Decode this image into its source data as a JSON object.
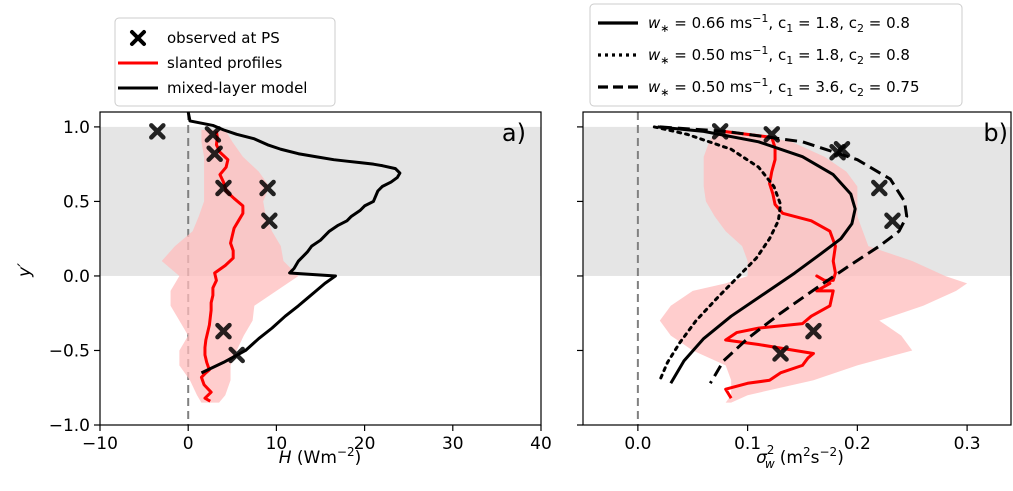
{
  "chart_data": [
    {
      "type": "line",
      "panel_label": "a)",
      "xlabel_var": "H",
      "xlabel_unit": " (Wm",
      "xlabel_exp": "−2",
      "xlabel_close": ")",
      "ylabel": "y′",
      "xlim": [
        -10,
        40
      ],
      "ylim": [
        -1.0,
        1.1
      ],
      "xticks": [
        -10,
        0,
        10,
        20,
        30,
        40
      ],
      "xtick_labels": [
        "−10",
        "0",
        "10",
        "20",
        "30",
        "40"
      ],
      "yticks": [
        -1.0,
        -0.5,
        0.0,
        0.5,
        1.0
      ],
      "ytick_labels": [
        "−1.0",
        "−0.5",
        "0.0",
        "0.5",
        "1.0"
      ],
      "shaded_band": [
        0.0,
        1.0
      ],
      "zero_line": 0,
      "legend": {
        "position": "above-left",
        "entries": [
          {
            "label": "observed at PS",
            "marker": "x-marker"
          },
          {
            "label": "slanted profiles",
            "color": "#ff0000"
          },
          {
            "label": "mixed-layer model",
            "color": "#000000"
          }
        ]
      },
      "series": [
        {
          "name": "observed at PS",
          "kind": "marker",
          "x": [
            -3.5,
            2.8,
            3.0,
            4.0,
            9.0,
            9.2,
            4.0,
            5.5
          ],
          "y": [
            0.97,
            0.95,
            0.82,
            0.59,
            0.59,
            0.37,
            -0.37,
            -0.53
          ]
        },
        {
          "name": "slanted profiles",
          "kind": "line",
          "color": "#ff0000",
          "x": [
            3.2,
            3.3,
            3.2,
            3.6,
            4.5,
            4.3,
            3.6,
            4.0,
            4.3,
            5.2,
            6.2,
            6.2,
            5.7,
            5.2,
            5.0,
            4.8,
            5.1,
            5.1,
            4.2,
            3.0,
            3.2,
            2.8,
            2.8,
            2.6,
            2.6,
            2.5,
            2.4,
            2.2,
            2.0,
            1.9,
            1.9,
            2.1,
            2.4,
            2.0,
            1.5,
            1.8,
            2.6,
            1.9,
            2.5
          ],
          "y": [
            0.97,
            0.93,
            0.88,
            0.83,
            0.78,
            0.73,
            0.68,
            0.63,
            0.57,
            0.52,
            0.47,
            0.42,
            0.37,
            0.32,
            0.27,
            0.22,
            0.17,
            0.12,
            0.07,
            0.02,
            -0.03,
            -0.08,
            -0.13,
            -0.18,
            -0.23,
            -0.28,
            -0.33,
            -0.38,
            -0.43,
            -0.48,
            -0.53,
            -0.58,
            -0.63,
            -0.65,
            -0.68,
            -0.73,
            -0.78,
            -0.82,
            -0.84
          ]
        },
        {
          "name": "slanted profiles band",
          "kind": "band",
          "color": "#ffbcbc",
          "y": [
            0.98,
            0.9,
            0.8,
            0.7,
            0.6,
            0.5,
            0.4,
            0.3,
            0.2,
            0.1,
            0.0,
            -0.1,
            -0.2,
            -0.3,
            -0.4,
            -0.5,
            -0.6,
            -0.7,
            -0.8,
            -0.85
          ],
          "lower": [
            1.5,
            1.5,
            1.8,
            1.8,
            1.8,
            1.8,
            1.2,
            0.5,
            -1.5,
            -3.0,
            -1.0,
            -2.0,
            -2.0,
            -1.0,
            0.0,
            -1.0,
            -1.0,
            0.2,
            1.0,
            1.5
          ],
          "upper": [
            4.2,
            5.0,
            6.2,
            8.0,
            9.2,
            8.5,
            8.8,
            9.5,
            10.5,
            10.8,
            12.5,
            10.0,
            7.5,
            7.3,
            6.3,
            5.5,
            4.8,
            4.8,
            4.2,
            3.5
          ]
        },
        {
          "name": "mixed-layer model",
          "kind": "line",
          "color": "#000000",
          "x": [
            0.0,
            0.2,
            2.8,
            4.0,
            5.5,
            7.5,
            9.0,
            10.5,
            12.5,
            14.5,
            16.5,
            18.0,
            19.5,
            21.0,
            22.0,
            23.5,
            24.0,
            23.7,
            23.0,
            22.0,
            21.5,
            21.0,
            20.0,
            19.5,
            18.5,
            18.0,
            17.0,
            16.0,
            15.5,
            15.0,
            14.0,
            13.5,
            12.5,
            12.0,
            11.5,
            16.7,
            15.5,
            14.5,
            13.5,
            12.5,
            11.0,
            9.5,
            8.0,
            6.5,
            4.0,
            1.5
          ],
          "y": [
            1.1,
            1.04,
            1.01,
            0.98,
            0.95,
            0.92,
            0.88,
            0.85,
            0.82,
            0.8,
            0.78,
            0.77,
            0.76,
            0.75,
            0.74,
            0.72,
            0.69,
            0.66,
            0.63,
            0.6,
            0.57,
            0.5,
            0.47,
            0.44,
            0.4,
            0.37,
            0.34,
            0.3,
            0.27,
            0.24,
            0.2,
            0.16,
            0.1,
            0.05,
            0.02,
            0.0,
            -0.05,
            -0.1,
            -0.15,
            -0.2,
            -0.27,
            -0.35,
            -0.42,
            -0.5,
            -0.58,
            -0.65
          ]
        }
      ]
    },
    {
      "type": "line",
      "panel_label": "b)",
      "xlabel_var": "σ",
      "xlabel_sub": "w",
      "xlabel_sup": "2",
      "xlabel_unit": " (m",
      "xlabel_exp1": "2",
      "xlabel_mid": "s",
      "xlabel_exp2": "−2",
      "xlabel_close": ")",
      "xlim": [
        -0.05,
        0.34
      ],
      "ylim": [
        -1.0,
        1.1
      ],
      "xticks": [
        0.0,
        0.1,
        0.2,
        0.3
      ],
      "xtick_labels": [
        "0.0",
        "0.1",
        "0.2",
        "0.3"
      ],
      "yticks": [
        -1.0,
        -0.5,
        0.0,
        0.5,
        1.0
      ],
      "shaded_band": [
        0.0,
        1.0
      ],
      "zero_line": 0,
      "legend": {
        "position": "above-right",
        "entries": [
          {
            "dash": "solid",
            "w": "w",
            "w_star": "∗",
            "w_value": " = 0.66 ms",
            "w_exp": "−1",
            "c1": "1.8",
            "c2": "0.8"
          },
          {
            "dash": "dotted",
            "w": "w",
            "w_star": "∗",
            "w_value": " = 0.50 ms",
            "w_exp": "−1",
            "c1": "1.8",
            "c2": "0.8"
          },
          {
            "dash": "dashed",
            "w": "w",
            "w_star": "∗",
            "w_value": " = 0.50 ms",
            "w_exp": "−1",
            "c1": "3.6",
            "c2": "0.75"
          }
        ]
      },
      "series": [
        {
          "kind": "marker",
          "x": [
            0.075,
            0.122,
            0.182,
            0.186,
            0.22,
            0.232,
            0.16,
            0.13
          ],
          "y": [
            0.97,
            0.95,
            0.83,
            0.85,
            0.59,
            0.37,
            -0.37,
            -0.52
          ]
        },
        {
          "kind": "band",
          "color": "#ffbcbc",
          "y": [
            0.98,
            0.9,
            0.8,
            0.7,
            0.6,
            0.5,
            0.4,
            0.3,
            0.2,
            0.1,
            0.0,
            -0.05,
            -0.1,
            -0.2,
            -0.3,
            -0.4,
            -0.5,
            -0.6,
            -0.7,
            -0.8,
            -0.85
          ],
          "lower": [
            0.072,
            0.065,
            0.06,
            0.06,
            0.06,
            0.062,
            0.07,
            0.08,
            0.095,
            0.1,
            0.1,
            0.08,
            0.05,
            0.03,
            0.02,
            0.03,
            0.05,
            0.08,
            0.085,
            0.085,
            0.08
          ],
          "upper": [
            0.08,
            0.14,
            0.17,
            0.19,
            0.2,
            0.2,
            0.2,
            0.205,
            0.21,
            0.25,
            0.28,
            0.3,
            0.29,
            0.26,
            0.22,
            0.24,
            0.25,
            0.2,
            0.16,
            0.1,
            0.085
          ]
        },
        {
          "kind": "line",
          "color": "#ff0000",
          "x": [
            0.078,
            0.1,
            0.122,
            0.125,
            0.125,
            0.122,
            0.12,
            0.123,
            0.125,
            0.132,
            0.158,
            0.175,
            0.18,
            0.178,
            0.18,
            0.178,
            0.17,
            0.163,
            0.175,
            0.163,
            0.178,
            0.175,
            0.158,
            0.15,
            0.11,
            0.09,
            0.08,
            0.11,
            0.16,
            0.155,
            0.15,
            0.13,
            0.12,
            0.1,
            0.08,
            0.085
          ],
          "y": [
            0.97,
            0.95,
            0.93,
            0.86,
            0.78,
            0.7,
            0.62,
            0.55,
            0.48,
            0.42,
            0.37,
            0.3,
            0.2,
            0.1,
            0.02,
            -0.03,
            -0.03,
            0.0,
            -0.05,
            -0.1,
            -0.1,
            -0.2,
            -0.27,
            -0.32,
            -0.35,
            -0.38,
            -0.43,
            -0.46,
            -0.52,
            -0.55,
            -0.6,
            -0.65,
            -0.7,
            -0.72,
            -0.76,
            -0.82
          ]
        },
        {
          "kind": "line",
          "dash": "solid",
          "color": "#000000",
          "x": [
            0.018,
            0.06,
            0.11,
            0.15,
            0.178,
            0.194,
            0.198,
            0.195,
            0.185,
            0.167,
            0.143,
            0.115,
            0.085,
            0.06,
            0.042,
            0.03
          ],
          "y": [
            1.0,
            0.97,
            0.9,
            0.8,
            0.68,
            0.55,
            0.45,
            0.35,
            0.25,
            0.15,
            0.02,
            -0.12,
            -0.27,
            -0.42,
            -0.57,
            -0.72
          ]
        },
        {
          "kind": "line",
          "dash": "dotted",
          "color": "#000000",
          "x": [
            0.015,
            0.045,
            0.085,
            0.11,
            0.124,
            0.13,
            0.128,
            0.12,
            0.108,
            0.092,
            0.072,
            0.053,
            0.038,
            0.027,
            0.02
          ],
          "y": [
            1.0,
            0.95,
            0.85,
            0.73,
            0.6,
            0.48,
            0.37,
            0.25,
            0.12,
            0.0,
            -0.15,
            -0.3,
            -0.45,
            -0.58,
            -0.7
          ]
        },
        {
          "kind": "line",
          "dash": "dashed",
          "color": "#000000",
          "x": [
            0.02,
            0.08,
            0.15,
            0.2,
            0.23,
            0.243,
            0.245,
            0.238,
            0.22,
            0.195,
            0.163,
            0.13,
            0.1,
            0.078,
            0.066
          ],
          "y": [
            1.0,
            0.97,
            0.9,
            0.78,
            0.65,
            0.5,
            0.4,
            0.3,
            0.2,
            0.08,
            -0.08,
            -0.25,
            -0.42,
            -0.57,
            -0.72
          ]
        }
      ]
    }
  ]
}
